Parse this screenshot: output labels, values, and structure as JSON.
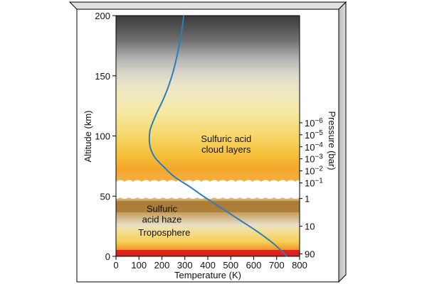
{
  "chart_data": {
    "type": "line",
    "title": "",
    "xlabel": "Temperature (K)",
    "ylabel": "Altitude (km)",
    "y2label": "Pressure (bar)",
    "xlim": [
      0,
      800
    ],
    "ylim": [
      0,
      200
    ],
    "x_ticks": [
      "0",
      "100",
      "200",
      "300",
      "400",
      "500",
      "600",
      "700",
      "800"
    ],
    "y_ticks": [
      "0",
      "50",
      "100",
      "150",
      "200"
    ],
    "pressure_ticks": [
      {
        "label": "90",
        "altitude": 2
      },
      {
        "label": "10",
        "altitude": 25
      },
      {
        "label": "1",
        "altitude": 48
      },
      {
        "label": "10−1",
        "base": "10",
        "exp": "−1",
        "altitude": 61
      },
      {
        "label": "10−2",
        "base": "10",
        "exp": "−2",
        "altitude": 71
      },
      {
        "label": "10−3",
        "base": "10",
        "exp": "−3",
        "altitude": 81
      },
      {
        "label": "10−4",
        "base": "10",
        "exp": "−4",
        "altitude": 91
      },
      {
        "label": "10−5",
        "base": "10",
        "exp": "−5",
        "altitude": 101
      },
      {
        "label": "10−6",
        "base": "10",
        "exp": "−6",
        "altitude": 111
      }
    ],
    "series": [
      {
        "color": "#2a7fb8",
        "x": [
          745,
          690,
          620,
          540,
          460,
          380,
          320,
          255,
          210,
          170,
          150,
          145,
          150,
          175,
          205,
          230,
          250,
          265,
          280,
          290,
          295
        ],
        "y": [
          0,
          10,
          20,
          30,
          40,
          50,
          58,
          66,
          74,
          82,
          90,
          98,
          106,
          118,
          130,
          142,
          154,
          166,
          180,
          192,
          200
        ]
      }
    ],
    "annotations": [
      {
        "lines": [
          "Sulfuric acid",
          "cloud layers"
        ],
        "x": 480,
        "y": 95
      },
      {
        "lines": [
          "Sulfuric",
          "acid haze"
        ],
        "x": 200,
        "y": 37
      },
      {
        "lines": [
          "Troposphere"
        ],
        "x": 210,
        "y": 17
      }
    ],
    "grid": false,
    "colors": {
      "curve": "#2a7fb8",
      "frame": "#000000",
      "box_side": "#c8c8c8",
      "troposphere_red": "#d8201a",
      "haze_brown": "#a0702a",
      "cloud_gold": "#f4b224",
      "upper_gray": "#4a4a4a"
    }
  }
}
